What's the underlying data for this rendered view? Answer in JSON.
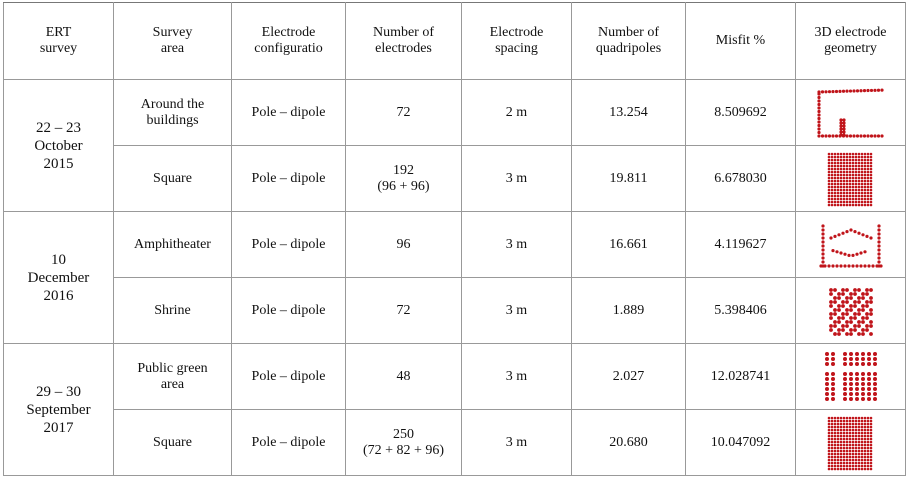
{
  "table": {
    "header": [
      [
        "ERT",
        "survey"
      ],
      [
        "Survey",
        "area"
      ],
      [
        "Electrode",
        "configuratio"
      ],
      [
        "Number of",
        "electrodes"
      ],
      [
        "Electrode",
        "spacing"
      ],
      [
        "Number of",
        "quadripoles"
      ],
      [
        "Misfit %"
      ],
      [
        "3D electrode",
        "geometry"
      ]
    ],
    "groups": [
      {
        "survey": [
          "22 – 23",
          "October",
          "2015"
        ],
        "rows": [
          [
            [
              "Around the",
              "buildings"
            ],
            [
              "Pole – dipole"
            ],
            [
              "72"
            ],
            [
              "2 m"
            ],
            [
              "13.254"
            ],
            [
              "8.509692"
            ]
          ],
          [
            [
              "Square"
            ],
            [
              "Pole – dipole"
            ],
            [
              "192",
              "(96 + 96)"
            ],
            [
              "3 m"
            ],
            [
              "19.811"
            ],
            [
              "6.678030"
            ]
          ]
        ]
      },
      {
        "survey": [
          "10",
          "December",
          "2016"
        ],
        "rows": [
          [
            [
              "Amphitheater"
            ],
            [
              "Pole – dipole"
            ],
            [
              "96"
            ],
            [
              "3 m"
            ],
            [
              "16.661"
            ],
            [
              "4.119627"
            ]
          ],
          [
            [
              "Shrine"
            ],
            [
              "Pole – dipole"
            ],
            [
              "72"
            ],
            [
              "3 m"
            ],
            [
              "1.889"
            ],
            [
              "5.398406"
            ]
          ]
        ]
      },
      {
        "survey": [
          "29 – 30",
          "September",
          "2017"
        ],
        "rows": [
          [
            [
              "Public green",
              "area"
            ],
            [
              "Pole – dipole"
            ],
            [
              "48"
            ],
            [
              "3 m"
            ],
            [
              "2.027"
            ],
            [
              "12.028741"
            ]
          ],
          [
            [
              "Square"
            ],
            [
              "Pole – dipole"
            ],
            [
              "250",
              "(72 + 82 + 96)"
            ],
            [
              "3 m"
            ],
            [
              "20.680"
            ],
            [
              "10.047092"
            ]
          ]
        ]
      }
    ]
  }
}
